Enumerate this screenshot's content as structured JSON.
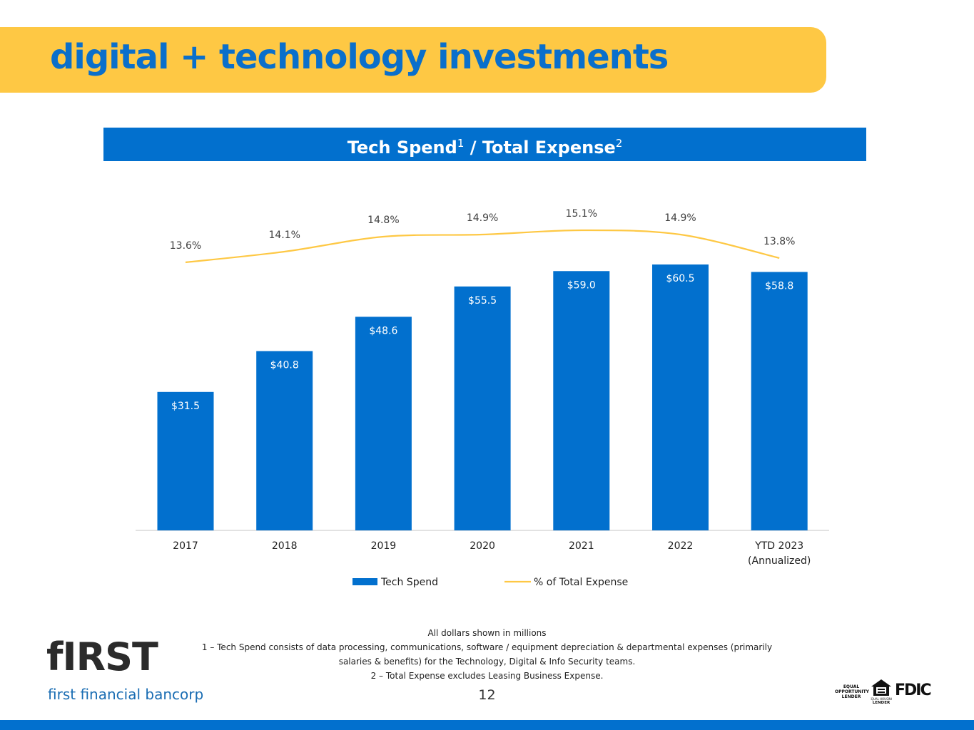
{
  "page": {
    "title": "digital + technology investments",
    "page_number": "12",
    "colors": {
      "title_band": "#FEC844",
      "title_text": "#0A6FCB",
      "brand_blue": "#0270CE",
      "line": "#FEC844"
    }
  },
  "chart_header": {
    "main": "Tech Spend",
    "sup1": "1",
    "mid": " / Total Expense",
    "sup2": "2"
  },
  "chart_data": {
    "type": "bar",
    "title": "Tech Spend1 / Total Expense2",
    "categories": [
      "2017",
      "2018",
      "2019",
      "2020",
      "2021",
      "2022",
      "YTD 2023 (Annualized)"
    ],
    "category_lines": [
      [
        "2017"
      ],
      [
        "2018"
      ],
      [
        "2019"
      ],
      [
        "2020"
      ],
      [
        "2021"
      ],
      [
        "2022"
      ],
      [
        "YTD 2023",
        "(Annualized)"
      ]
    ],
    "series": [
      {
        "name": "Tech Spend",
        "type": "bar",
        "values": [
          31.5,
          40.8,
          48.6,
          55.5,
          59.0,
          60.5,
          58.8
        ],
        "labels": [
          "$31.5",
          "$40.8",
          "$48.6",
          "$55.5",
          "$59.0",
          "$60.5",
          "$58.8"
        ],
        "color": "#0270CE"
      },
      {
        "name": "% of Total Expense",
        "type": "line",
        "values": [
          13.6,
          14.1,
          14.8,
          14.9,
          15.1,
          14.9,
          13.8
        ],
        "labels": [
          "13.6%",
          "14.1%",
          "14.8%",
          "14.9%",
          "15.1%",
          "14.9%",
          "13.8%"
        ],
        "color": "#FEC844"
      }
    ],
    "xlabel": "",
    "ylabel": "",
    "grid": false,
    "legend": "bottom"
  },
  "footnotes": {
    "line1": "All dollars shown in millions",
    "line2": "1 – Tech Spend consists of data processing, communications, software / equipment depreciation & departmental expenses (primarily",
    "line3": "salaries & benefits) for the Technology, Digital & Info Security teams.",
    "line4": "2 – Total Expense excludes Leasing Business Expense."
  },
  "logo": {
    "mark": "fIRST",
    "name": "first financial bancorp"
  },
  "badges": {
    "equal_opportunity": "EQUAL OPPORTUNITY LENDER",
    "housing": "EQUAL HOUSING LENDER",
    "fdic": "FDIC"
  }
}
